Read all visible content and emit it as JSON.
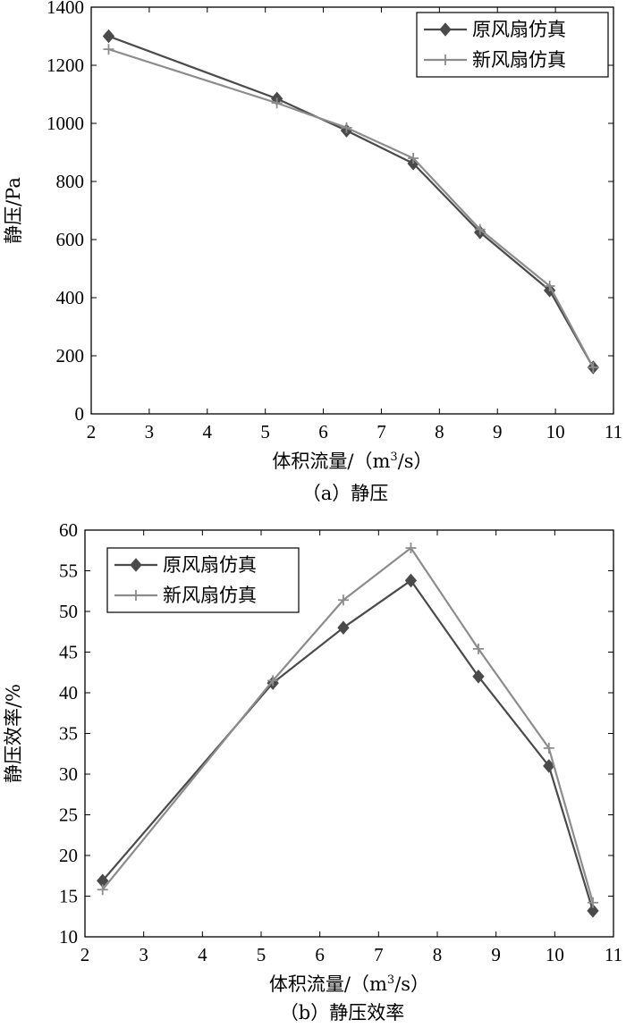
{
  "chart_data": [
    {
      "type": "line",
      "caption": "（a）静压",
      "xlabel_main": "体积流量/（m",
      "xlabel_sup": "3",
      "xlabel_tail": "/s）",
      "ylabel": "静压/Pa",
      "xlim": [
        2,
        11
      ],
      "ylim": [
        0,
        1400
      ],
      "xticks": [
        2,
        3,
        4,
        5,
        6,
        7,
        8,
        9,
        10,
        11
      ],
      "yticks": [
        0,
        200,
        400,
        600,
        800,
        1000,
        1200,
        1400
      ],
      "grid": false,
      "legend_position": "top-right",
      "series": [
        {
          "name": "原风扇仿真",
          "marker": "diamond",
          "color": "#4a4a4a",
          "x": [
            2.3,
            5.2,
            6.4,
            7.55,
            8.7,
            9.9,
            10.65
          ],
          "y": [
            1300,
            1085,
            975,
            862,
            625,
            425,
            160
          ]
        },
        {
          "name": "新风扇仿真",
          "marker": "plus",
          "color": "#8c8c8c",
          "x": [
            2.3,
            5.2,
            6.4,
            7.55,
            8.7,
            9.9,
            10.65
          ],
          "y": [
            1255,
            1070,
            985,
            880,
            635,
            440,
            160
          ]
        }
      ]
    },
    {
      "type": "line",
      "caption": "（b）静压效率",
      "xlabel_main": "体积流量/（m",
      "xlabel_sup": "3",
      "xlabel_tail": "/s）",
      "ylabel": "静压效率/%",
      "xlim": [
        2,
        11
      ],
      "ylim": [
        10,
        60
      ],
      "xticks": [
        2,
        3,
        4,
        5,
        6,
        7,
        8,
        9,
        10,
        11
      ],
      "yticks": [
        10,
        15,
        20,
        25,
        30,
        35,
        40,
        45,
        50,
        55,
        60
      ],
      "grid": false,
      "legend_position": "top-left",
      "series": [
        {
          "name": "原风扇仿真",
          "marker": "diamond",
          "color": "#4a4a4a",
          "x": [
            2.3,
            5.2,
            6.4,
            7.55,
            8.7,
            9.9,
            10.65
          ],
          "y": [
            16.9,
            41.2,
            48.0,
            53.8,
            42.0,
            31.0,
            13.2
          ]
        },
        {
          "name": "新风扇仿真",
          "marker": "plus",
          "color": "#8c8c8c",
          "x": [
            2.3,
            5.2,
            6.4,
            7.55,
            8.7,
            9.9,
            10.65
          ],
          "y": [
            15.8,
            41.5,
            51.4,
            57.8,
            45.4,
            33.2,
            14.2
          ]
        }
      ]
    }
  ]
}
